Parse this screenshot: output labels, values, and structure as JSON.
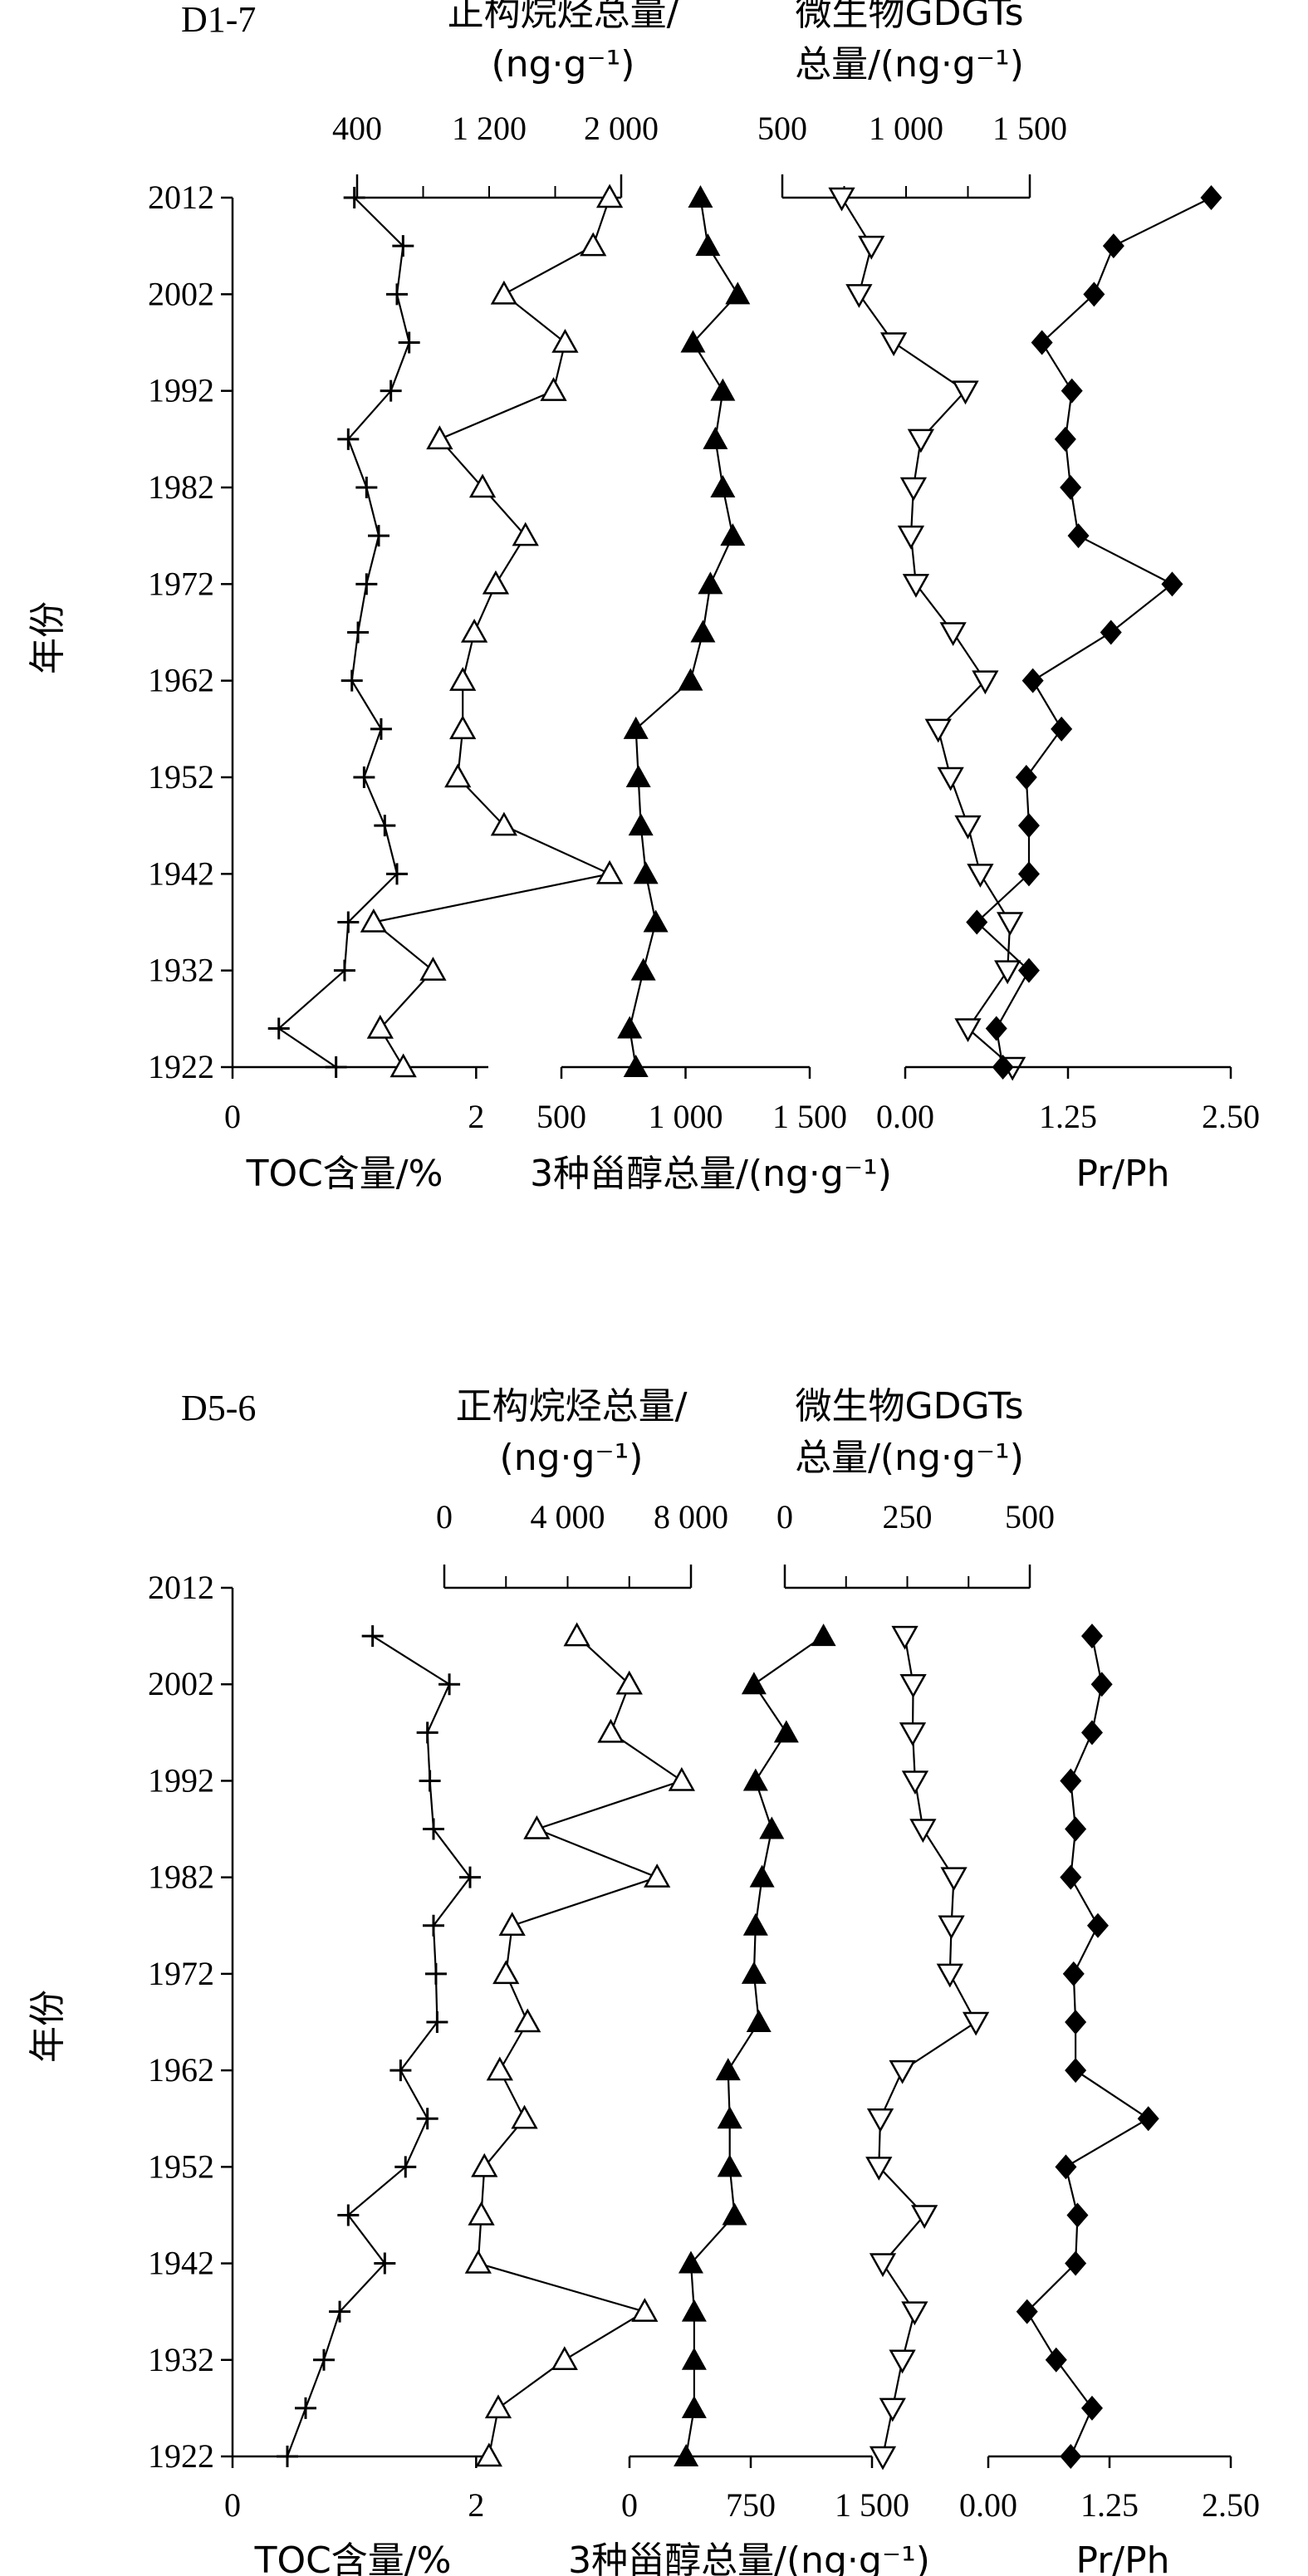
{
  "chart_data": [
    {
      "type": "line",
      "panel_label": "D1-7",
      "years": [
        1922,
        1926,
        1932,
        1937,
        1942,
        1947,
        1952,
        1957,
        1962,
        1967,
        1972,
        1977,
        1982,
        1987,
        1992,
        1997,
        2002,
        2007,
        2012
      ],
      "y_ticks": [
        1922,
        1932,
        1942,
        1952,
        1962,
        1972,
        1982,
        1992,
        2002,
        2012
      ],
      "y_label": "年份",
      "series": [
        {
          "key": "toc",
          "marker": "plus",
          "xlabel": "TOC含量/%",
          "ticks": [
            0,
            2
          ],
          "tick_labels": [
            "0",
            "2"
          ],
          "xlim": [
            0,
            2.1
          ],
          "values": [
            0.85,
            0.38,
            0.92,
            0.95,
            1.35,
            1.25,
            1.08,
            1.22,
            0.98,
            1.03,
            1.1,
            1.2,
            1.1,
            0.95,
            1.3,
            1.45,
            1.35,
            1.4,
            1.0
          ]
        },
        {
          "key": "nalkane",
          "marker": "triangle-open",
          "xlabel": "正构烷烃总量/(ng·g⁻¹)",
          "xlabel_lines": [
            "正构烷烃总量/",
            "(ng·g⁻¹)"
          ],
          "ticks": [
            400,
            1200,
            2000
          ],
          "tick_labels": [
            "400",
            "1 200",
            "2 000"
          ],
          "xlim": [
            400,
            2000
          ],
          "values": [
            680,
            540,
            860,
            500,
            1930,
            1290,
            1010,
            1040,
            1040,
            1110,
            1240,
            1420,
            1160,
            900,
            1590,
            1660,
            1290,
            1830,
            1930
          ]
        },
        {
          "key": "sterol",
          "marker": "triangle-filled",
          "xlabel": "3种甾醇总量/(ng·g⁻¹)",
          "ticks": [
            500,
            1000,
            1500
          ],
          "tick_labels": [
            "500",
            "1 000",
            "1 500"
          ],
          "xlim": [
            500,
            1500
          ],
          "values": [
            800,
            775,
            830,
            880,
            840,
            820,
            810,
            800,
            1020,
            1070,
            1100,
            1190,
            1150,
            1120,
            1150,
            1030,
            1210,
            1090,
            1060
          ]
        },
        {
          "key": "gdgt",
          "marker": "triangle-down-open",
          "xlabel": "微生物GDGTs总量/(ng·g⁻¹)",
          "xlabel_lines": [
            "微生物GDGTs",
            "总量/(ng·g⁻¹)"
          ],
          "ticks": [
            500,
            1000,
            1500
          ],
          "tick_labels": [
            "500",
            "1 000",
            "1 500"
          ],
          "xlim": [
            500,
            1500
          ],
          "values": [
            1430,
            1250,
            1410,
            1420,
            1300,
            1250,
            1180,
            1130,
            1320,
            1190,
            1040,
            1020,
            1030,
            1060,
            1240,
            950,
            810,
            860,
            740
          ]
        },
        {
          "key": "prph",
          "marker": "diamond-filled",
          "xlabel": "Pr/Ph",
          "ticks": [
            0,
            1.25,
            2.5
          ],
          "tick_labels": [
            "0.00",
            "1.25",
            "2.50"
          ],
          "xlim": [
            0,
            2.5
          ],
          "values": [
            0.75,
            0.7,
            0.95,
            0.55,
            0.95,
            0.95,
            0.93,
            1.2,
            0.98,
            1.58,
            2.05,
            1.33,
            1.27,
            1.23,
            1.28,
            1.05,
            1.45,
            1.6,
            2.35
          ]
        }
      ]
    },
    {
      "type": "line",
      "panel_label": "D5-6",
      "years": [
        1922,
        1927,
        1932,
        1937,
        1942,
        1947,
        1952,
        1957,
        1962,
        1967,
        1972,
        1977,
        1982,
        1987,
        1992,
        1997,
        2002,
        2007
      ],
      "y_ticks": [
        1922,
        1932,
        1942,
        1952,
        1962,
        1972,
        1982,
        1992,
        2002,
        2012
      ],
      "y_label": "年份",
      "series": [
        {
          "key": "toc",
          "marker": "plus",
          "xlabel": "TOC含量/%",
          "ticks": [
            0,
            2
          ],
          "tick_labels": [
            "0",
            "2"
          ],
          "xlim": [
            0,
            2.1
          ],
          "values": [
            0.45,
            0.6,
            0.75,
            0.88,
            1.25,
            0.95,
            1.42,
            1.6,
            1.38,
            1.68,
            1.67,
            1.65,
            1.95,
            1.65,
            1.62,
            1.6,
            1.78,
            1.15
          ]
        },
        {
          "key": "nalkane",
          "marker": "triangle-open",
          "xlabel": "正构烷烃总量/(ng·g⁻¹)",
          "xlabel_lines": [
            "正构烷烃总量/",
            "(ng·g⁻¹)"
          ],
          "ticks": [
            0,
            4000,
            8000
          ],
          "tick_labels": [
            "0",
            "4 000",
            "8 000"
          ],
          "xlim": [
            0,
            8000
          ],
          "values": [
            1450,
            1750,
            3900,
            6500,
            1100,
            1200,
            1300,
            2600,
            1800,
            2700,
            2000,
            2200,
            6900,
            3000,
            7700,
            5400,
            6000,
            4300
          ]
        },
        {
          "key": "sterol",
          "marker": "triangle-filled",
          "xlabel": "3种甾醇总量/(ng·g⁻¹)",
          "ticks": [
            0,
            750,
            1500
          ],
          "tick_labels": [
            "0",
            "750",
            "1 500"
          ],
          "xlim": [
            0,
            1500
          ],
          "values": [
            350,
            400,
            400,
            400,
            380,
            650,
            620,
            620,
            610,
            800,
            770,
            780,
            820,
            880,
            780,
            970,
            770,
            1200
          ]
        },
        {
          "key": "gdgt",
          "marker": "triangle-down-open",
          "xlabel": "微生物GDGTs总量/(ng·g⁻¹)",
          "xlabel_lines": [
            "微生物GDGTs",
            "总量/(ng·g⁻¹)"
          ],
          "ticks": [
            0,
            250,
            500
          ],
          "tick_labels": [
            "0",
            "250",
            "500"
          ],
          "xlim": [
            0,
            500
          ],
          "values": [
            200,
            220,
            240,
            265,
            200,
            285,
            192,
            195,
            240,
            390,
            337,
            340,
            345,
            282,
            266,
            261,
            262,
            245
          ]
        },
        {
          "key": "prph",
          "marker": "diamond-filled",
          "xlabel": "Pr/Ph",
          "ticks": [
            0,
            1.25,
            2.5
          ],
          "tick_labels": [
            "0.00",
            "1.25",
            "2.50"
          ],
          "xlim": [
            0,
            2.5
          ],
          "values": [
            0.85,
            1.07,
            0.7,
            0.4,
            0.9,
            0.92,
            0.8,
            1.65,
            0.9,
            0.9,
            0.88,
            1.13,
            0.85,
            0.9,
            0.85,
            1.07,
            1.17,
            1.07
          ]
        }
      ]
    }
  ]
}
